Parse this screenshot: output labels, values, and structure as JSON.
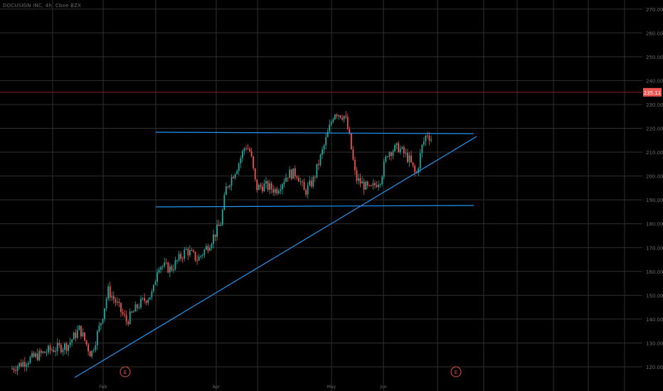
{
  "symbol_header": "DOCUSIGN INC, 4h, Cboe BZX",
  "colors": {
    "background": "#000000",
    "grid": "#2f2f2f",
    "up": "#26a69a",
    "down": "#ef5350",
    "trendline": "#2196f3",
    "price_line": "#8b1e1e",
    "axis_text": "#6a6a6a",
    "earnings": "#e0524d"
  },
  "current_price": {
    "label": "235.11",
    "value": 235.11
  },
  "earnings_markers": [
    {
      "label": "E",
      "date": "2021-03-11"
    },
    {
      "label": "E",
      "date": "2021-06-03"
    }
  ],
  "chart_data": {
    "type": "candlestick",
    "title": "",
    "xlabel": "",
    "ylabel": "",
    "ylim": [
      117,
      272
    ],
    "y_ticks": [
      120,
      130,
      140,
      150,
      160,
      170,
      180,
      190,
      200,
      210,
      220,
      230,
      240,
      250,
      260,
      270
    ],
    "x_ticks": [
      "",
      "Feb",
      "",
      "Apr",
      "",
      "May",
      "Jun",
      "",
      ""
    ],
    "grid": true,
    "candles": []
  }
}
